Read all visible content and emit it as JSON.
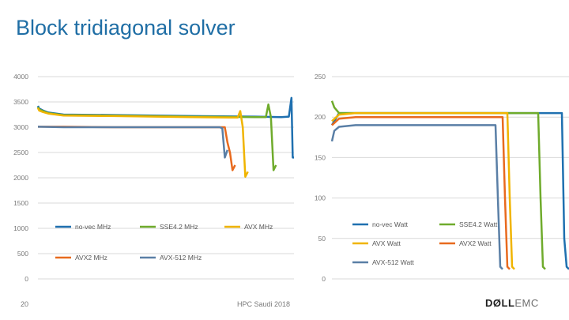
{
  "title": "Block tridiagonal solver",
  "footer": {
    "page_number": "20",
    "event": "HPC Saudi 2018"
  },
  "logo": {
    "bold": "DØLL",
    "light": "EMC"
  },
  "colors": {
    "no_vec": "#1f70b0",
    "sse42": "#6fab2c",
    "avx": "#f0b400",
    "avx2": "#e86a1e",
    "avx512": "#5a7fa6",
    "grid": "#d9d9d9"
  },
  "chart_data": [
    {
      "type": "line",
      "yticks": [
        "4000",
        "3500",
        "3000",
        "2500",
        "2000",
        "1500",
        "1000",
        "500",
        "0"
      ],
      "ylim": [
        0,
        4000
      ],
      "xlim": [
        0,
        100
      ],
      "grid": true,
      "legend_position": "inside-bottom-left",
      "series": [
        {
          "name": "no-vec MHz",
          "color": "#1f70b0",
          "x": [
            0,
            0.5,
            2,
            4,
            10,
            30,
            60,
            85,
            95,
            98,
            99,
            99.5,
            100
          ],
          "y": [
            3420,
            3370,
            3330,
            3290,
            3250,
            3240,
            3220,
            3210,
            3200,
            3210,
            3580,
            2400,
            2400
          ]
        },
        {
          "name": "SSE4.2 MHz",
          "color": "#6fab2c",
          "x": [
            0,
            0.5,
            2,
            4,
            10,
            30,
            60,
            85,
            89,
            90,
            91,
            92,
            93
          ],
          "y": [
            3400,
            3350,
            3320,
            3280,
            3240,
            3230,
            3210,
            3200,
            3200,
            3450,
            3200,
            2150,
            2250
          ]
        },
        {
          "name": "AVX MHz",
          "color": "#f0b400",
          "x": [
            0,
            0.5,
            2,
            4,
            10,
            30,
            60,
            75,
            78,
            79,
            80,
            81,
            82
          ],
          "y": [
            3380,
            3330,
            3300,
            3270,
            3230,
            3220,
            3200,
            3190,
            3190,
            3320,
            3000,
            2020,
            2120
          ]
        },
        {
          "name": "AVX2 MHz",
          "color": "#e86a1e",
          "x": [
            0,
            10,
            30,
            60,
            73,
            74,
            75,
            76,
            77
          ],
          "y": [
            3010,
            3010,
            3000,
            3000,
            3000,
            2700,
            2500,
            2150,
            2250
          ]
        },
        {
          "name": "AVX-512 MHz",
          "color": "#5a7fa6",
          "x": [
            0,
            10,
            30,
            60,
            71,
            72,
            73,
            74
          ],
          "y": [
            3010,
            3000,
            3000,
            3000,
            3000,
            2980,
            2400,
            2550
          ]
        }
      ]
    },
    {
      "type": "line",
      "yticks": [
        "250",
        "200",
        "150",
        "100",
        "50",
        "0"
      ],
      "ylim": [
        0,
        250
      ],
      "xlim": [
        0,
        100
      ],
      "grid": true,
      "legend_position": "inside-bottom-right",
      "series": [
        {
          "name": "no-vec Watt",
          "color": "#1f70b0",
          "x": [
            0,
            3,
            10,
            30,
            60,
            85,
            95,
            97,
            98,
            99,
            100
          ],
          "y": [
            190,
            205,
            205,
            205,
            205,
            205,
            205,
            205,
            50,
            15,
            12
          ]
        },
        {
          "name": "SSE4.2 Watt",
          "color": "#6fab2c",
          "x": [
            0,
            1,
            3,
            10,
            30,
            60,
            80,
            87,
            88,
            89,
            90
          ],
          "y": [
            220,
            212,
            205,
            205,
            205,
            205,
            205,
            205,
            100,
            15,
            12
          ]
        },
        {
          "name": "AVX Watt",
          "color": "#f0b400",
          "x": [
            0,
            3,
            10,
            30,
            60,
            74,
            75,
            76,
            77
          ],
          "y": [
            195,
            203,
            205,
            205,
            205,
            205,
            100,
            15,
            12
          ]
        },
        {
          "name": "AVX2 Watt",
          "color": "#e86a1e",
          "x": [
            0,
            3,
            10,
            30,
            60,
            72,
            73,
            74,
            75
          ],
          "y": [
            190,
            198,
            200,
            200,
            200,
            200,
            100,
            15,
            12
          ]
        },
        {
          "name": "AVX-512 Watt",
          "color": "#5a7fa6",
          "x": [
            0,
            1,
            3,
            10,
            30,
            60,
            69,
            70,
            71,
            72
          ],
          "y": [
            170,
            183,
            188,
            190,
            190,
            190,
            190,
            100,
            15,
            12
          ]
        }
      ]
    }
  ]
}
